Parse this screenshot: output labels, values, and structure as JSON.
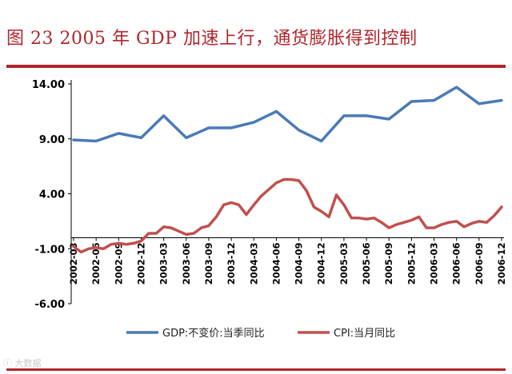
{
  "title": "图 23   2005 年 GDP 加速上行，通货膨胀得到控制",
  "watermark": "ⓘ 大数据",
  "colors": {
    "accent": "#b0262c",
    "gdp": "#4a7ab5",
    "cpi": "#c0504d"
  },
  "chart_data": {
    "type": "line",
    "yticks": [
      "14.00",
      "9.00",
      "4.00",
      "-1.00",
      "-6.00"
    ],
    "ylim": [
      -6,
      14
    ],
    "categories": [
      "2002-03",
      "2002-06",
      "2002-09",
      "2002-12",
      "2003-03",
      "2003-06",
      "2003-09",
      "2003-12",
      "2004-03",
      "2004-06",
      "2004-09",
      "2004-12",
      "2005-03",
      "2005-06",
      "2005-09",
      "2005-12",
      "2006-03",
      "2006-06",
      "2006-09",
      "2006-12"
    ],
    "series": [
      {
        "name": "GDP:不变价:当季同比",
        "x": [
          0,
          1,
          2,
          3,
          4,
          5,
          6,
          7,
          8,
          9,
          10,
          11,
          12,
          13,
          14,
          15,
          16,
          17,
          18,
          19
        ],
        "values": [
          8.9,
          8.8,
          9.5,
          9.1,
          11.1,
          9.1,
          10.0,
          10.0,
          10.5,
          11.5,
          9.8,
          8.8,
          11.1,
          11.1,
          10.8,
          12.4,
          12.5,
          13.7,
          12.2,
          12.5
        ]
      },
      {
        "name": "CPI:当月同比",
        "x": [
          0,
          0.333,
          0.667,
          1,
          1.333,
          1.667,
          2,
          2.333,
          2.667,
          3,
          3.333,
          3.667,
          4,
          4.333,
          4.667,
          5,
          5.333,
          5.667,
          6,
          6.333,
          6.667,
          7,
          7.333,
          7.667,
          8,
          8.333,
          8.667,
          9,
          9.333,
          9.667,
          10,
          10.333,
          10.667,
          11,
          11.333,
          11.667,
          12,
          12.333,
          12.667,
          13,
          13.333,
          13.667,
          14,
          14.333,
          14.667,
          15,
          15.333,
          15.667,
          16,
          16.333,
          16.667,
          17,
          17.333,
          17.667,
          18,
          18.333,
          18.667,
          19
        ],
        "values": [
          -0.8,
          -1.3,
          -1.0,
          -0.9,
          -1.0,
          -0.6,
          -0.5,
          -0.6,
          -0.5,
          -0.3,
          0.4,
          0.4,
          1.0,
          0.9,
          0.6,
          0.3,
          0.4,
          0.9,
          1.1,
          1.9,
          3.0,
          3.2,
          3.0,
          2.1,
          3.0,
          3.8,
          4.4,
          5.0,
          5.3,
          5.3,
          5.2,
          4.3,
          2.8,
          2.4,
          1.9,
          3.9,
          3.0,
          1.8,
          1.8,
          1.7,
          1.8,
          1.4,
          0.9,
          1.2,
          1.4,
          1.6,
          1.9,
          0.9,
          0.9,
          1.2,
          1.4,
          1.5,
          1.0,
          1.3,
          1.5,
          1.4,
          2.0,
          2.8
        ]
      }
    ]
  }
}
